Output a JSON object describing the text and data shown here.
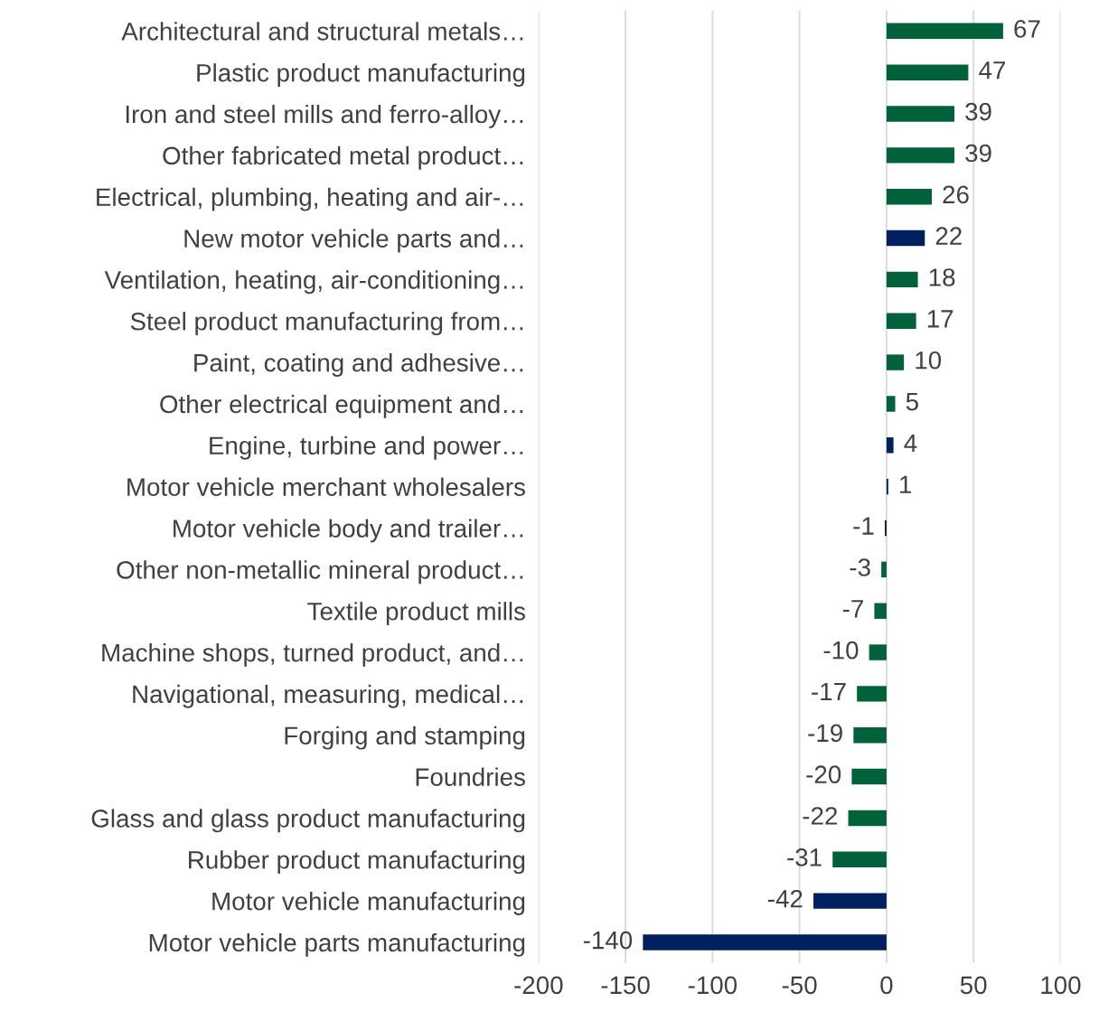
{
  "chart_data": {
    "type": "bar",
    "orientation": "horizontal",
    "categories": [
      "Architectural and structural metals…",
      "Plastic product manufacturing",
      "Iron and steel mills and ferro-alloy…",
      "Other fabricated metal product…",
      "Electrical, plumbing, heating and air-…",
      "New motor vehicle parts and…",
      "Ventilation, heating, air-conditioning…",
      "Steel product manufacturing from…",
      "Paint, coating and adhesive…",
      "Other electrical equipment and…",
      "Engine, turbine and power…",
      "Motor vehicle merchant wholesalers",
      "Motor vehicle body and trailer…",
      "Other non-metallic mineral product…",
      "Textile product mills",
      "Machine shops, turned product, and…",
      "Navigational, measuring, medical…",
      "Forging and stamping",
      "Foundries",
      "Glass and glass product manufacturing",
      "Rubber product manufacturing",
      "Motor vehicle manufacturing",
      "Motor vehicle parts manufacturing"
    ],
    "values": [
      67,
      47,
      39,
      39,
      26,
      22,
      18,
      17,
      10,
      5,
      4,
      1,
      -1,
      -3,
      -7,
      -10,
      -17,
      -19,
      -20,
      -22,
      -31,
      -42,
      -140
    ],
    "colors": [
      "#00613a",
      "#00613a",
      "#00613a",
      "#00613a",
      "#00613a",
      "#002060",
      "#00613a",
      "#00613a",
      "#00613a",
      "#00613a",
      "#002060",
      "#002060",
      "#002060",
      "#00613a",
      "#00613a",
      "#00613a",
      "#00613a",
      "#00613a",
      "#00613a",
      "#00613a",
      "#00613a",
      "#002060",
      "#002060"
    ],
    "data_labels": true,
    "xlim": [
      -200,
      100
    ],
    "xticks": [
      -200,
      -150,
      -100,
      -50,
      0,
      50,
      100
    ],
    "grid": "x"
  }
}
